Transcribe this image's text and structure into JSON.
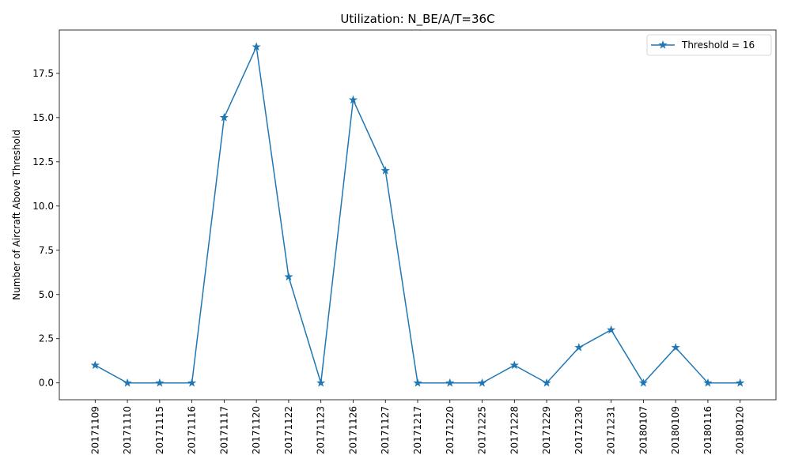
{
  "chart_data": {
    "type": "line",
    "title": "Utilization: N_BE/A/T=36C",
    "xlabel": "",
    "ylabel": "Number of Aircraft Above Threshold",
    "categories": [
      "20171109",
      "20171110",
      "20171115",
      "20171116",
      "20171117",
      "20171120",
      "20171122",
      "20171123",
      "20171126",
      "20171127",
      "20171217",
      "20171220",
      "20171225",
      "20171228",
      "20171229",
      "20171230",
      "20171231",
      "20180107",
      "20180109",
      "20180116",
      "20180120"
    ],
    "series": [
      {
        "name": "Threshold = 16",
        "values": [
          1,
          0,
          0,
          0,
          15,
          19,
          6,
          0,
          16,
          12,
          0,
          0,
          0,
          1,
          0,
          2,
          3,
          0,
          2,
          0,
          0
        ],
        "color": "#1f77b4",
        "marker": "star"
      }
    ],
    "yticks": [
      "0.0",
      "2.5",
      "5.0",
      "7.5",
      "10.0",
      "12.5",
      "15.0",
      "17.5"
    ],
    "ylim": [
      -0.95,
      19.95
    ],
    "grid": false,
    "legend_position": "upper-right"
  }
}
